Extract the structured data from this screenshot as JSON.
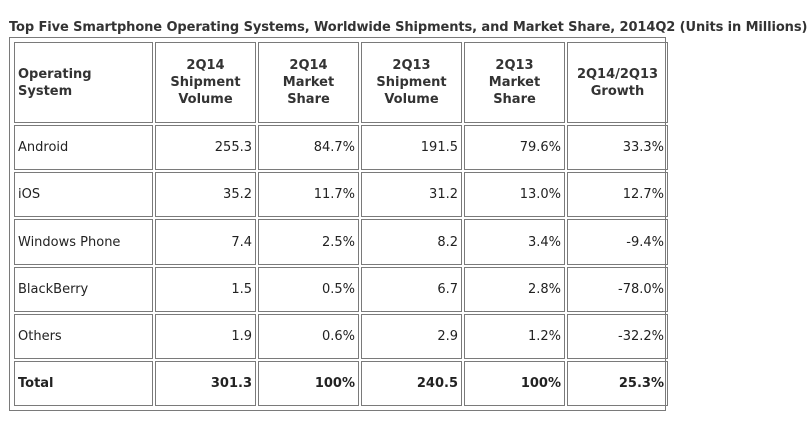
{
  "caption": "Top Five Smartphone Operating Systems, Worldwide Shipments, and Market Share, 2014Q2 (Units in Millions)",
  "table": {
    "headers": [
      "Operating System",
      "2Q14 Shipment Volume",
      "2Q14 Market Share",
      "2Q13 Shipment Volume",
      "2Q13 Market Share",
      "2Q14/2Q13 Growth"
    ],
    "rows": [
      {
        "os": "Android",
        "q14_volume": "255.3",
        "q14_share": "84.7%",
        "q13_volume": "191.5",
        "q13_share": "79.6%",
        "growth": "33.3%"
      },
      {
        "os": "iOS",
        "q14_volume": "35.2",
        "q14_share": "11.7%",
        "q13_volume": "31.2",
        "q13_share": "13.0%",
        "growth": "12.7%"
      },
      {
        "os": "Windows Phone",
        "q14_volume": "7.4",
        "q14_share": "2.5%",
        "q13_volume": "8.2",
        "q13_share": "3.4%",
        "growth": "-9.4%"
      },
      {
        "os": "BlackBerry",
        "q14_volume": "1.5",
        "q14_share": "0.5%",
        "q13_volume": "6.7",
        "q13_share": "2.8%",
        "growth": "-78.0%"
      },
      {
        "os": "Others",
        "q14_volume": "1.9",
        "q14_share": "0.6%",
        "q13_volume": "2.9",
        "q13_share": "1.2%",
        "growth": "-32.2%"
      },
      {
        "os": "Total",
        "q14_volume": "301.3",
        "q14_share": "100%",
        "q13_volume": "240.5",
        "q13_share": "100%",
        "growth": "25.3%"
      }
    ]
  }
}
